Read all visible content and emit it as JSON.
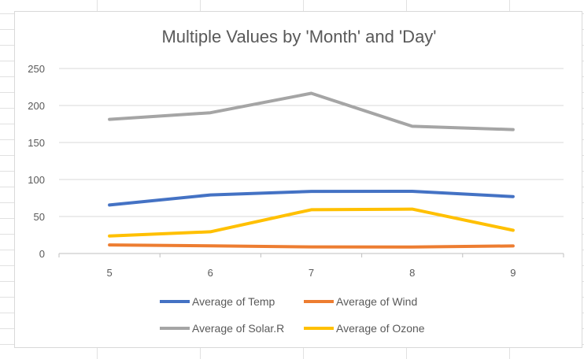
{
  "chart_data": {
    "type": "line",
    "title": "Multiple Values by 'Month' and 'Day'",
    "xlabel": "",
    "ylabel": "",
    "categories": [
      "5",
      "6",
      "7",
      "8",
      "9"
    ],
    "y_ticks": [
      "0",
      "50",
      "100",
      "150",
      "200",
      "250"
    ],
    "ylim": [
      0,
      250
    ],
    "grid": true,
    "legend_position": "bottom",
    "series": [
      {
        "name": "Average of Temp",
        "color": "#4472c4",
        "values": [
          65.5,
          79.1,
          83.9,
          84.0,
          76.9
        ]
      },
      {
        "name": "Average of Wind",
        "color": "#ed7d31",
        "values": [
          11.6,
          10.3,
          8.9,
          8.8,
          10.2
        ]
      },
      {
        "name": "Average of Solar.R",
        "color": "#a5a5a5",
        "values": [
          181.3,
          190.2,
          216.5,
          171.9,
          167.4
        ]
      },
      {
        "name": "Average of Ozone",
        "color": "#ffc000",
        "values": [
          23.6,
          29.4,
          59.1,
          60.0,
          31.4
        ]
      }
    ]
  }
}
